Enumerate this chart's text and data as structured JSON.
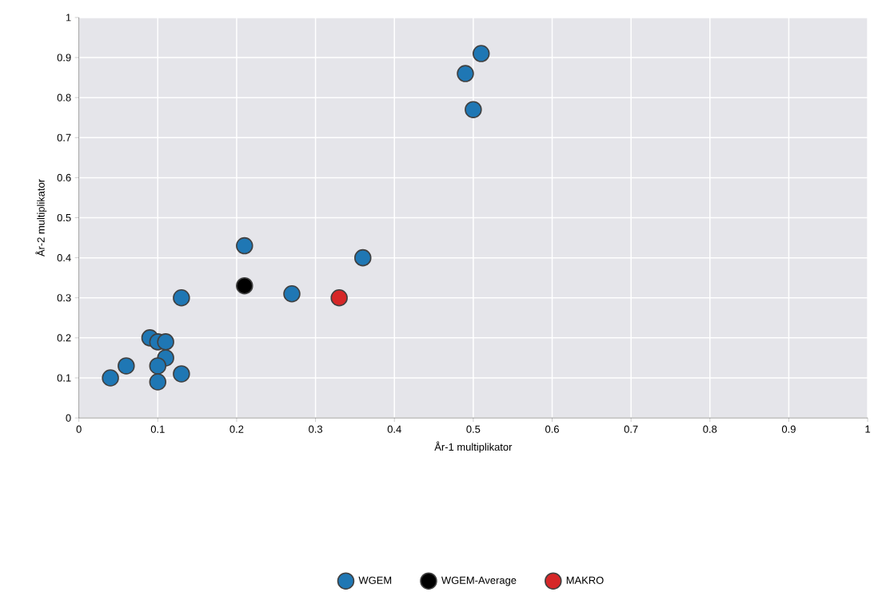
{
  "chart_data": {
    "type": "scatter",
    "xlabel": "År-1 multiplikator",
    "ylabel": "År-2 multiplikator",
    "xlim": [
      0,
      1
    ],
    "ylim": [
      0,
      1
    ],
    "xticks": [
      0,
      0.1,
      0.2,
      0.3,
      0.4,
      0.5,
      0.6,
      0.7,
      0.8,
      0.9,
      1
    ],
    "yticks": [
      0,
      0.1,
      0.2,
      0.3,
      0.4,
      0.5,
      0.6,
      0.7,
      0.8,
      0.9,
      1
    ],
    "grid": true,
    "legend": "bottom",
    "marker": "circle",
    "series": [
      {
        "name": "WGEM",
        "color": "#1f77b4",
        "x": [
          0.04,
          0.06,
          0.09,
          0.1,
          0.11,
          0.11,
          0.1,
          0.1,
          0.13,
          0.13,
          0.21,
          0.27,
          0.36,
          0.49,
          0.51,
          0.5
        ],
        "values": [
          0.1,
          0.13,
          0.2,
          0.19,
          0.19,
          0.15,
          0.13,
          0.09,
          0.11,
          0.3,
          0.43,
          0.31,
          0.4,
          0.86,
          0.91,
          0.77
        ]
      },
      {
        "name": "WGEM-Average",
        "color": "#000000",
        "x": [
          0.21
        ],
        "values": [
          0.33
        ]
      },
      {
        "name": "MAKRO",
        "color": "#d62728",
        "x": [
          0.33
        ],
        "values": [
          0.3
        ]
      }
    ]
  }
}
